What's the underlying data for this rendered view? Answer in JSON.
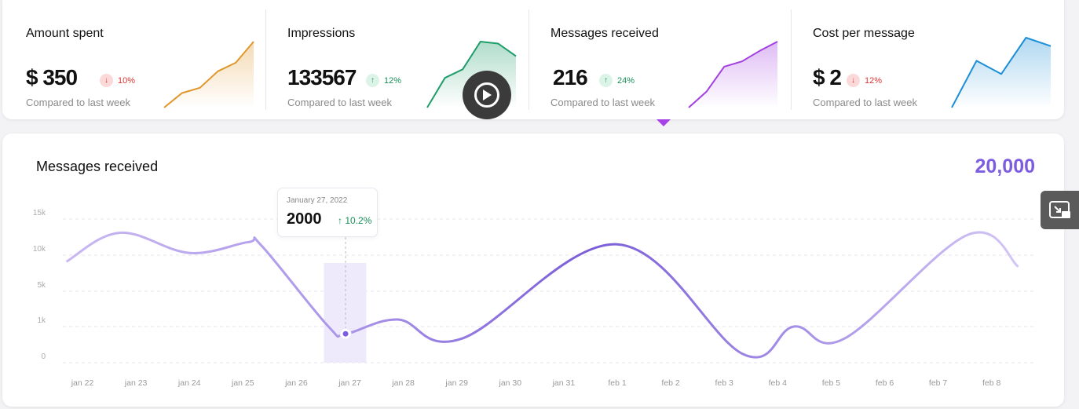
{
  "kpis": [
    {
      "title": "Amount spent",
      "value": "$ 350",
      "change": "10%",
      "direction": "down",
      "compare": "Compared to last week",
      "color": "#e0962a",
      "spark": [
        0,
        22,
        30,
        55,
        68,
        100
      ]
    },
    {
      "title": "Impressions",
      "value": "133567",
      "change": "12%",
      "direction": "up",
      "compare": "Compared to last week",
      "color": "#1f9d6a",
      "spark": [
        0,
        45,
        58,
        100,
        97,
        78
      ]
    },
    {
      "title": "Messages received",
      "value": "216",
      "change": "24%",
      "direction": "up",
      "compare": "Compared to last week",
      "color": "#a33ee0",
      "spark": [
        0,
        24,
        62,
        70,
        86,
        100
      ]
    },
    {
      "title": "Cost per message",
      "value": "$ 2",
      "change": "12%",
      "direction": "down",
      "compare": "Compared to last week",
      "color": "#1d8fd6",
      "spark": [
        0,
        67,
        48,
        100,
        88
      ]
    }
  ],
  "main": {
    "title": "Messages received",
    "total": "20,000",
    "accent": "#7c5ce0"
  },
  "tooltip": {
    "date": "January 27, 2022",
    "value": "2000",
    "change": "10.2%"
  },
  "chart_data": {
    "type": "line",
    "title": "Messages received",
    "yticks": [
      0,
      1000,
      5000,
      10000,
      15000
    ],
    "ytick_labels": [
      "0",
      "1k",
      "5k",
      "10k",
      "15k"
    ],
    "categories": [
      "jan 22",
      "jan 23",
      "jan 24",
      "jan 25",
      "jan 26",
      "jan 27",
      "jan 28",
      "jan 29",
      "jan 30",
      "jan 31",
      "feb 1",
      "feb 2",
      "feb 3",
      "feb 4",
      "feb 5",
      "feb 6",
      "feb 7",
      "feb 8"
    ],
    "points": [
      [
        -0.3,
        9100
      ],
      [
        0.7,
        13100
      ],
      [
        2.0,
        10300
      ],
      [
        3.1,
        11800
      ],
      [
        3.35,
        11300
      ],
      [
        4.6,
        1000
      ],
      [
        4.92,
        800
      ],
      [
        5.9,
        1800
      ],
      [
        7.1,
        670
      ],
      [
        10.0,
        11500
      ],
      [
        12.35,
        240
      ],
      [
        13.3,
        1000
      ],
      [
        14.25,
        670
      ],
      [
        16.55,
        12800
      ],
      [
        17.5,
        8400
      ]
    ],
    "highlight_index": 5,
    "grid": true
  }
}
